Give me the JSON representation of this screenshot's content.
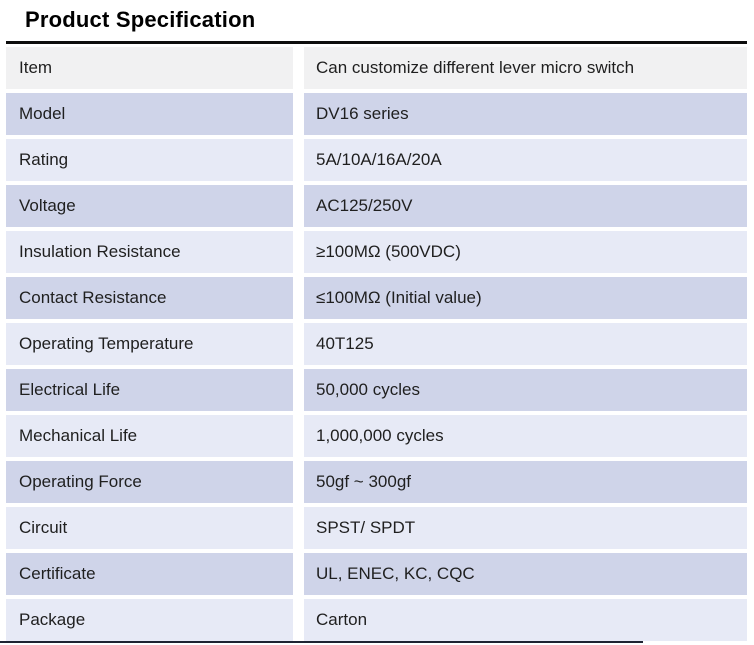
{
  "page": {
    "title": "Product Specification"
  },
  "table": {
    "rows": [
      {
        "label": "Item",
        "value": "Can customize different lever micro switch"
      },
      {
        "label": "Model",
        "value": "DV16 series"
      },
      {
        "label": "Rating",
        "value": "5A/10A/16A/20A"
      },
      {
        "label": "Voltage",
        "value": "AC125/250V"
      },
      {
        "label": "Insulation Resistance",
        "value": "≥100MΩ (500VDC)"
      },
      {
        "label": "Contact Resistance",
        "value": "≤100MΩ (Initial value)"
      },
      {
        "label": "Operating Temperature",
        "value": "40T125"
      },
      {
        "label": "Electrical Life",
        "value": "50,000 cycles"
      },
      {
        "label": "Mechanical Life",
        "value": "1,000,000 cycles"
      },
      {
        "label": "Operating Force",
        "value": "50gf ~ 300gf"
      },
      {
        "label": "Circuit",
        "value": "SPST/ SPDT"
      },
      {
        "label": "Certificate",
        "value": "UL, ENEC, KC, CQC"
      },
      {
        "label": "Package",
        "value": "Carton"
      }
    ],
    "colors": {
      "first_row_bg": "#f1f1f2",
      "stripe_dark_bg": "#cfd4e9",
      "stripe_light_bg": "#e7eaf6",
      "top_border": "#0d0d0d",
      "text": "#1f1f1f"
    }
  }
}
